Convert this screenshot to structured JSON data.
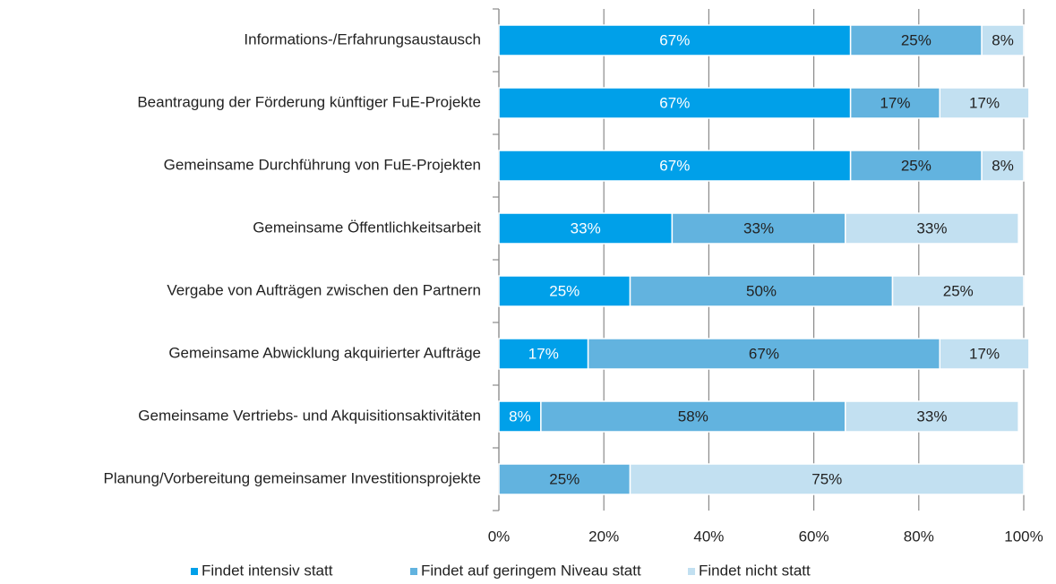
{
  "chart_data": {
    "type": "stacked-bar-horizontal",
    "categories": [
      "Informations-/Erfahrungsaustausch",
      "Beantragung der Förderung künftiger FuE-Projekte",
      "Gemeinsame Durchführung von FuE-Projekten",
      "Gemeinsame Öffentlichkeitsarbeit",
      "Vergabe von Aufträgen zwischen den Partnern",
      "Gemeinsame Abwicklung akquirierter Aufträge",
      "Gemeinsame Vertriebs- und Akquisitionsaktivitäten",
      "Planung/Vorbereitung gemeinsamer Investitionsprojekte"
    ],
    "series": [
      {
        "name": "Findet intensiv statt",
        "color": "#00a0e9",
        "label_color": "#ffffff",
        "values": [
          67,
          67,
          67,
          33,
          25,
          17,
          8,
          0
        ],
        "value_labels": [
          "67%",
          "67%",
          "67%",
          "33%",
          "25%",
          "17%",
          "8%",
          null
        ]
      },
      {
        "name": "Findet auf geringem Niveau statt",
        "color": "#62b3df",
        "label_color": "#222222",
        "values": [
          25,
          17,
          25,
          33,
          50,
          67,
          58,
          25
        ],
        "value_labels": [
          "25%",
          "17%",
          "25%",
          "33%",
          "50%",
          "67%",
          "58%",
          "25%"
        ]
      },
      {
        "name": "Findet nicht statt",
        "color": "#c2e0f1",
        "label_color": "#222222",
        "values": [
          8,
          17,
          8,
          33,
          25,
          17,
          33,
          75
        ],
        "value_labels": [
          "8%",
          "17%",
          "8%",
          "33%",
          "25%",
          "17%",
          "33%",
          "75%"
        ]
      }
    ],
    "xlim": [
      0,
      100
    ],
    "xticks": [
      {
        "value": 0,
        "label": "0%"
      },
      {
        "value": 20,
        "label": "20%"
      },
      {
        "value": 40,
        "label": "40%"
      },
      {
        "value": 60,
        "label": "60%"
      },
      {
        "value": 80,
        "label": "80%"
      },
      {
        "value": 100,
        "label": "100%"
      }
    ],
    "grid": true,
    "legend": "bottom"
  }
}
